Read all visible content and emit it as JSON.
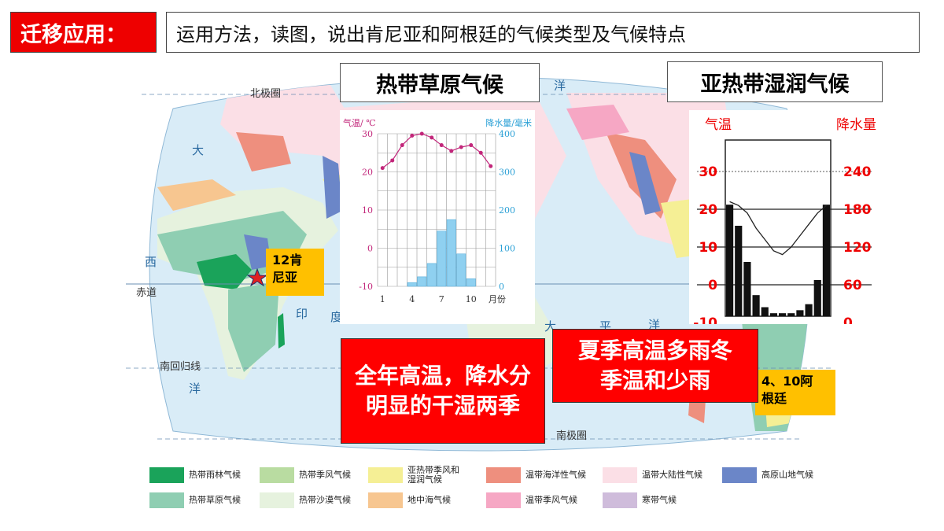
{
  "header": {
    "tag": "迁移应用：",
    "task": "运用方法，读图，说出肯尼亚和阿根廷的气候类型及气候特点"
  },
  "map": {
    "labels": {
      "arctic_circle": "北极圈",
      "equator": "赤道",
      "tropic_capricorn": "南回归线",
      "antarctic_circle": "南极圈"
    },
    "ocean_chars": {
      "da": "大",
      "xi": "西",
      "yang": "洋",
      "yang2": "洋",
      "yin": "印",
      "du": "度",
      "pacific_da": "大",
      "pacific_ping": "平",
      "pacific_yang": "洋",
      "north_yang": "洋"
    }
  },
  "climate_titles": {
    "savanna": "热带草原气候",
    "humid_subtropical": "亚热带湿润气候"
  },
  "chart_left": {
    "temp_label": "气温/ ℃",
    "precip_label": "降水量/毫米",
    "month_unit": "月份",
    "temp_ticks": [
      "30",
      "20",
      "10",
      "0",
      "-10"
    ],
    "precip_ticks": [
      "400",
      "300",
      "200",
      "100",
      "0"
    ],
    "month_ticks": [
      "1",
      "4",
      "7",
      "10"
    ]
  },
  "chart_right": {
    "temp_label": "气温",
    "precip_label": "降水量",
    "temp_ticks": [
      "30",
      "20",
      "10",
      "0",
      "-10"
    ],
    "precip_ticks": [
      "240",
      "180",
      "120",
      "60",
      "0"
    ]
  },
  "chart_data": [
    {
      "type": "bar",
      "categories": [
        "1",
        "2",
        "3",
        "4",
        "5",
        "6",
        "7",
        "8",
        "9",
        "10",
        "11",
        "12"
      ],
      "series": [
        {
          "values": [
            0,
            0,
            0,
            10,
            25,
            60,
            145,
            175,
            85,
            20,
            0,
            0
          ]
        }
      ],
      "xlabel": "月份",
      "ylabel": "降水量/毫米",
      "ylim": [
        0,
        400
      ]
    },
    {
      "type": "line",
      "categories": [
        "1",
        "2",
        "3",
        "4",
        "5",
        "6",
        "7",
        "8",
        "9",
        "10",
        "11",
        "12"
      ],
      "series": [
        {
          "values": [
            21,
            23,
            27,
            29.5,
            30,
            29,
            27,
            25.5,
            26.5,
            27,
            25,
            21.5
          ]
        }
      ],
      "xlabel": "月份",
      "ylabel": "气温/ ℃",
      "ylim": [
        -10,
        30
      ]
    }
  ],
  "right_chart_values": {
    "precip": [
      185,
      150,
      90,
      35,
      15,
      5,
      5,
      5,
      10,
      20,
      60,
      185
    ],
    "temp": [
      22,
      21,
      19,
      15,
      12,
      9,
      8,
      10,
      13,
      16,
      19,
      21
    ]
  },
  "callouts": {
    "kenya": "12肯\n尼亚",
    "argentina": "4、10阿\n根廷",
    "savanna_feature": "全年高温，降水分明显的干湿两季",
    "subtropical_feature": "夏季高温多雨冬季温和少雨"
  },
  "legend": [
    {
      "label": "热带雨林气候",
      "color": "#1aa35a"
    },
    {
      "label": "热带季风气候",
      "color": "#b9dca1"
    },
    {
      "label": "亚热带季风和湿润气候",
      "color": "#f5ef95"
    },
    {
      "label": "温带海洋性气候",
      "color": "#ee8f7e"
    },
    {
      "label": "温带大陆性气候",
      "color": "#fbdfe6"
    },
    {
      "label": "高原山地气候",
      "color": "#6b86c8"
    },
    {
      "label": "热带草原气候",
      "color": "#8fceb2"
    },
    {
      "label": "热带沙漠气候",
      "color": "#e6f2de"
    },
    {
      "label": "地中海气候",
      "color": "#f7c690"
    },
    {
      "label": "温带季风气候",
      "color": "#f6a7c4"
    },
    {
      "label": "寒带气候",
      "color": "#cfbcdb"
    }
  ]
}
